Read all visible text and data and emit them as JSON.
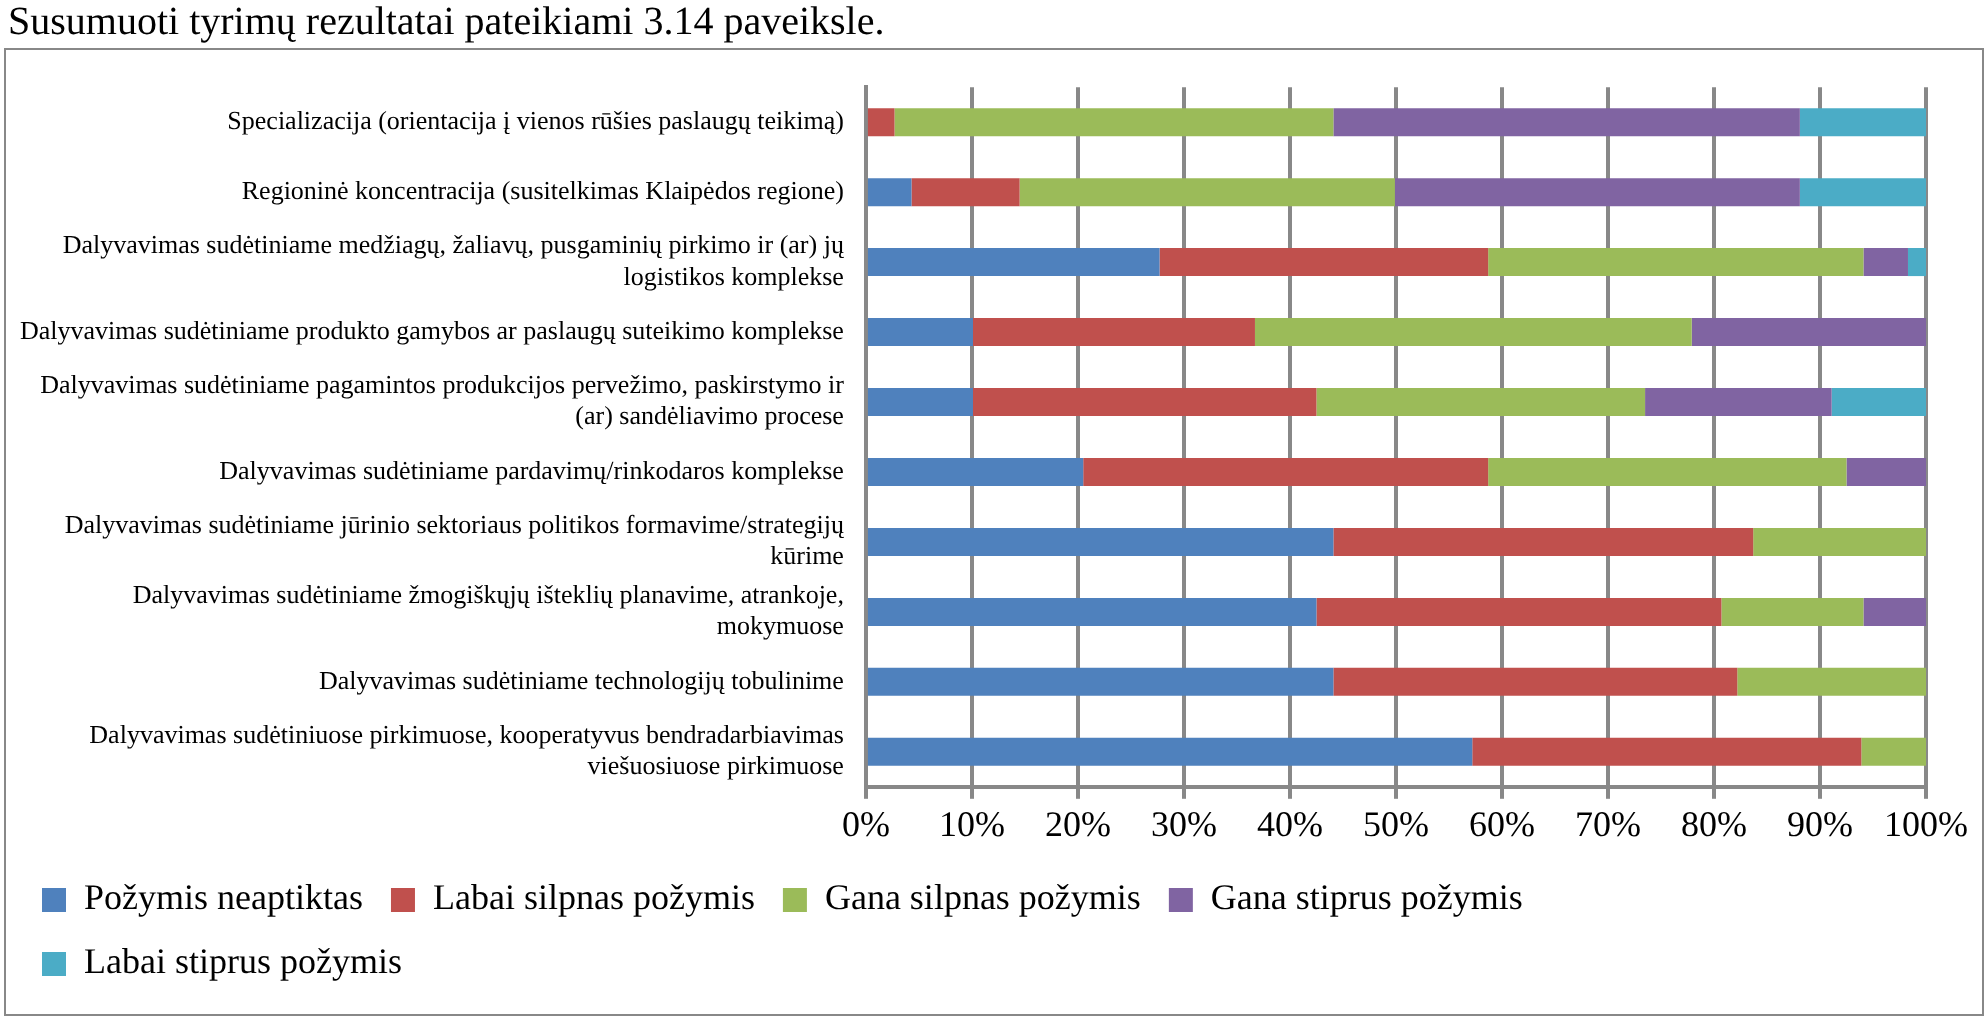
{
  "chart_data": {
    "type": "bar",
    "orientation": "horizontal",
    "stacked": true,
    "annotations": [
      "Susumuoti tyrimų rezultatai pateikiami 3.14 paveiksle."
    ],
    "categories": [
      "Specializacija (orientacija į vienos rūšies paslaugų teikimą)",
      "Regioninė koncentracija (susitelkimas Klaipėdos regione)",
      "Dalyvavimas sudėtiniame medžiagų, žaliavų, pusgaminių pirkimo ir (ar) jų logistikos komplekse",
      "Dalyvavimas sudėtiniame produkto gamybos ar paslaugų suteikimo komplekse",
      "Dalyvavimas sudėtiniame pagamintos produkcijos pervežimo, paskirstymo ir (ar) sandėliavimo procese",
      "Dalyvavimas sudėtiniame pardavimų/rinkodaros komplekse",
      "Dalyvavimas sudėtiniame jūrinio sektoriaus politikos formavime/strategijų kūrime",
      "Dalyvavimas sudėtiniame žmogiškųjų išteklių planavime, atrankoje, mokymuose",
      "Dalyvavimas sudėtiniame technologijų tobulinime",
      "Dalyvavimas sudėtiniuose pirkimuose, kooperatyvus bendradarbiavimas viešuosiuose pirkimuose"
    ],
    "series": [
      {
        "name": "Požymis neaptiktas",
        "color": "#4f81bd",
        "values": [
          0,
          4.3,
          27.7,
          10.1,
          10.1,
          20.5,
          44.1,
          42.5,
          44.1,
          57.2
        ]
      },
      {
        "name": "Labai silpnas požymis",
        "color": "#c0504d",
        "values": [
          2.7,
          10.2,
          31.0,
          26.6,
          32.4,
          38.2,
          39.6,
          38.2,
          38.1,
          36.7
        ]
      },
      {
        "name": "Gana silpnas požymis",
        "color": "#9bbb59",
        "values": [
          41.4,
          35.4,
          35.4,
          41.2,
          31.0,
          33.8,
          16.3,
          13.4,
          17.8,
          6.1
        ]
      },
      {
        "name": "Gana stiprus požymis",
        "color": "#8064a2",
        "values": [
          44.0,
          38.2,
          4.2,
          22.1,
          17.6,
          7.5,
          0,
          5.9,
          0,
          0
        ]
      },
      {
        "name": "Labai stiprus požymis",
        "color": "#4bacc6",
        "values": [
          11.9,
          11.9,
          1.7,
          0,
          8.9,
          0,
          0,
          0,
          0,
          0
        ]
      }
    ],
    "xlim": [
      0,
      100
    ],
    "xticks": [
      {
        "value": 0,
        "label": "0%"
      },
      {
        "value": 10,
        "label": "10%"
      },
      {
        "value": 20,
        "label": "20%"
      },
      {
        "value": 30,
        "label": "30%"
      },
      {
        "value": 40,
        "label": "40%"
      },
      {
        "value": 50,
        "label": "50%"
      },
      {
        "value": 60,
        "label": "60%"
      },
      {
        "value": 70,
        "label": "70%"
      },
      {
        "value": 80,
        "label": "80%"
      },
      {
        "value": 90,
        "label": "90%"
      },
      {
        "value": 100,
        "label": "100%"
      }
    ],
    "grid": "x",
    "legend": "bottom"
  }
}
